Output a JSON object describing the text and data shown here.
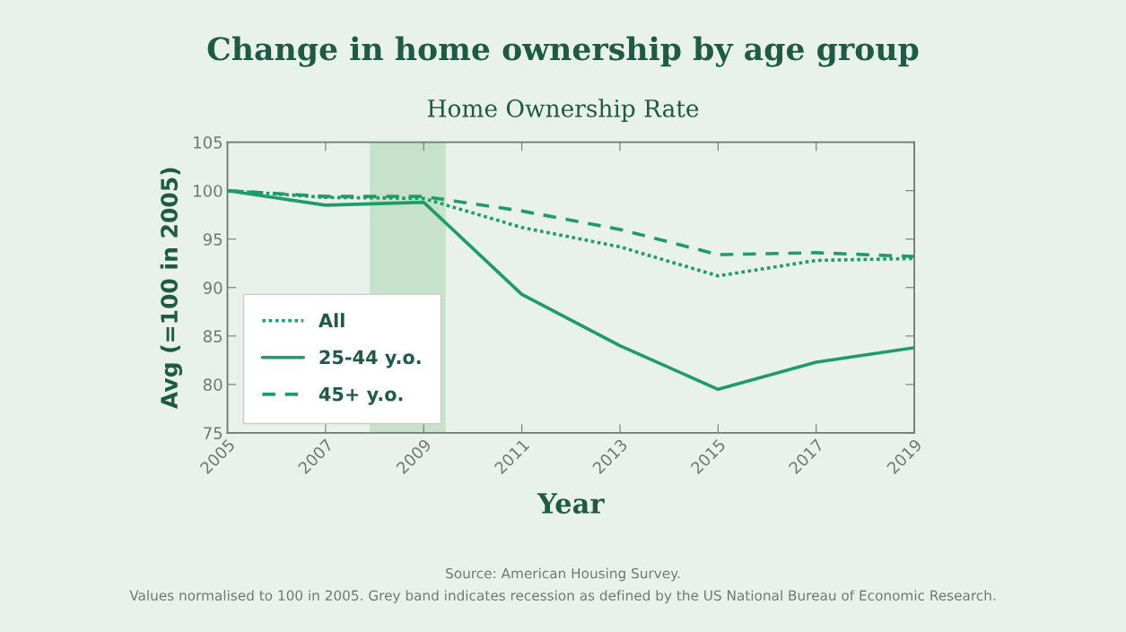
{
  "chart_data": {
    "type": "line",
    "title": "Change in home ownership by age group",
    "subtitle": "Home Ownership Rate",
    "xlabel": "Year",
    "ylabel": "Avg (=100 in 2005)",
    "x": [
      2005,
      2007,
      2009,
      2011,
      2013,
      2015,
      2017,
      2019
    ],
    "series": [
      {
        "name": "All",
        "color": "#1f9a6a",
        "line_style": "dotted",
        "values": [
          100,
          99.3,
          99.2,
          96.2,
          94.2,
          91.2,
          92.8,
          93.0
        ]
      },
      {
        "name": "25-44 y.o.",
        "color": "#1f9a6a",
        "line_style": "solid",
        "values": [
          100,
          98.5,
          98.8,
          89.3,
          84.0,
          79.5,
          82.3,
          83.8
        ]
      },
      {
        "name": "45+ y.o.",
        "color": "#1f9a6a",
        "line_style": "dashed",
        "values": [
          100,
          99.4,
          99.4,
          97.9,
          96.0,
          93.4,
          93.6,
          93.2
        ]
      }
    ],
    "xlim": [
      2005,
      2019
    ],
    "xticks": [
      2005,
      2007,
      2009,
      2011,
      2013,
      2015,
      2017,
      2019
    ],
    "ylim": [
      75,
      105
    ],
    "yticks": [
      75,
      80,
      85,
      90,
      95,
      100,
      105
    ],
    "bands": [
      {
        "axis": "x",
        "from": 2007.9,
        "to": 2009.45,
        "color": "#c6e2cb"
      }
    ],
    "grid": false,
    "legend": "bottom left",
    "marker": "none",
    "annotations": [
      "Source: American Housing Survey.",
      "Values normalised to 100 in 2005. Grey band indicates recession as defined by the US National Bureau of Economic Research."
    ]
  }
}
